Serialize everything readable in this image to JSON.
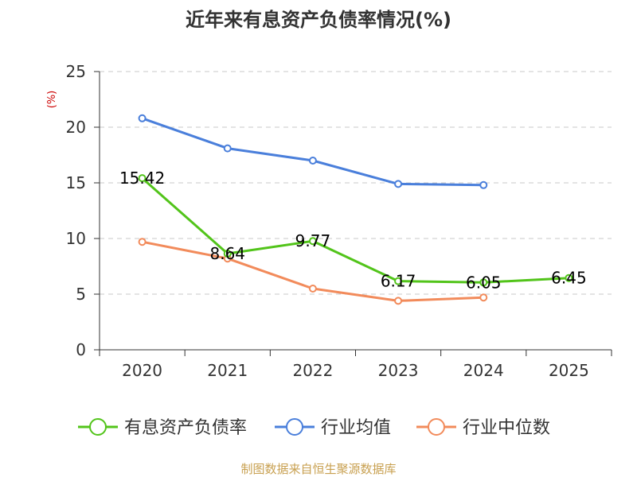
{
  "chart_data": {
    "type": "line",
    "title": "近年来有息资产负债率情况(%)",
    "unit_label": "(%)",
    "categories": [
      "2020",
      "2021",
      "2022",
      "2023",
      "2024",
      "2025"
    ],
    "ylim": [
      0,
      25
    ],
    "yticks": [
      0,
      5,
      10,
      15,
      20,
      25
    ],
    "grid": true,
    "legend_position": "bottom",
    "series": [
      {
        "name": "有息资产负债率",
        "color": "#52c41a",
        "values": [
          15.42,
          8.64,
          9.77,
          6.17,
          6.05,
          6.45
        ],
        "labels": [
          "15.42",
          "8.64",
          "9.77",
          "6.17",
          "6.05",
          "6.45"
        ],
        "show_labels": true
      },
      {
        "name": "行业均值",
        "color": "#4a7fdb",
        "values": [
          20.8,
          18.1,
          17.0,
          14.9,
          14.8,
          null
        ],
        "show_labels": false
      },
      {
        "name": "行业中位数",
        "color": "#f28b5b",
        "values": [
          9.7,
          8.2,
          5.5,
          4.4,
          4.7,
          null
        ],
        "show_labels": false
      }
    ]
  },
  "source": "制图数据来自恒生聚源数据库"
}
